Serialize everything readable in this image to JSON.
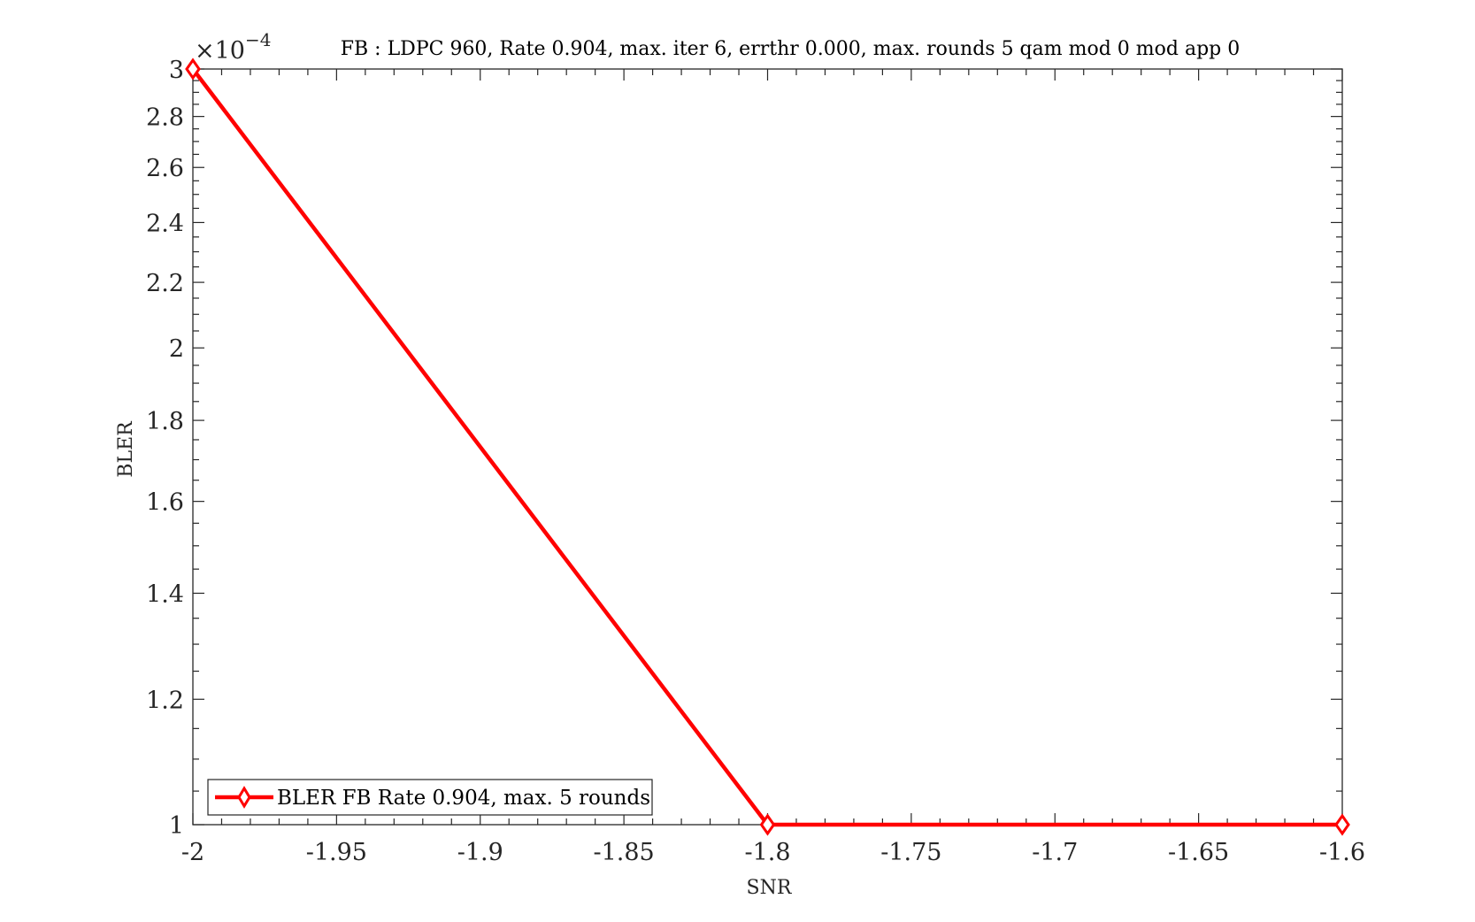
{
  "chart_data": {
    "type": "line",
    "title": "FB : LDPC 960, Rate 0.904, max. iter 6, errthr 0.000, max. rounds 5 qam mod 0 mod app 0",
    "xlabel": "SNR",
    "ylabel": "BLER",
    "y_multiplier": "×10",
    "y_exponent": "−4",
    "xlim": [
      -2,
      -1.6
    ],
    "ylim": [
      0.0001,
      0.0003
    ],
    "y_scale": "log",
    "x_ticks": [
      -2,
      -1.95,
      -1.9,
      -1.85,
      -1.8,
      -1.75,
      -1.7,
      -1.65,
      -1.6
    ],
    "x_tick_labels": [
      "-2",
      "-1.95",
      "-1.9",
      "-1.85",
      "-1.8",
      "-1.75",
      "-1.7",
      "-1.65",
      "-1.6"
    ],
    "y_ticks": [
      1,
      1.2,
      1.4,
      1.6,
      1.8,
      2,
      2.2,
      2.4,
      2.6,
      2.8,
      3
    ],
    "y_tick_labels": [
      "1",
      "1.2",
      "1.4",
      "1.6",
      "1.8",
      "2",
      "2.2",
      "2.4",
      "2.6",
      "2.8",
      "3"
    ],
    "grid": false,
    "legend_position": "bottom-left",
    "series": [
      {
        "name": "BLER FB Rate 0.904, max. 5 rounds",
        "color": "#ff0000",
        "marker": "diamond",
        "x": [
          -2,
          -1.8,
          -1.6
        ],
        "y": [
          0.0003,
          0.0001,
          0.0001
        ]
      }
    ]
  }
}
